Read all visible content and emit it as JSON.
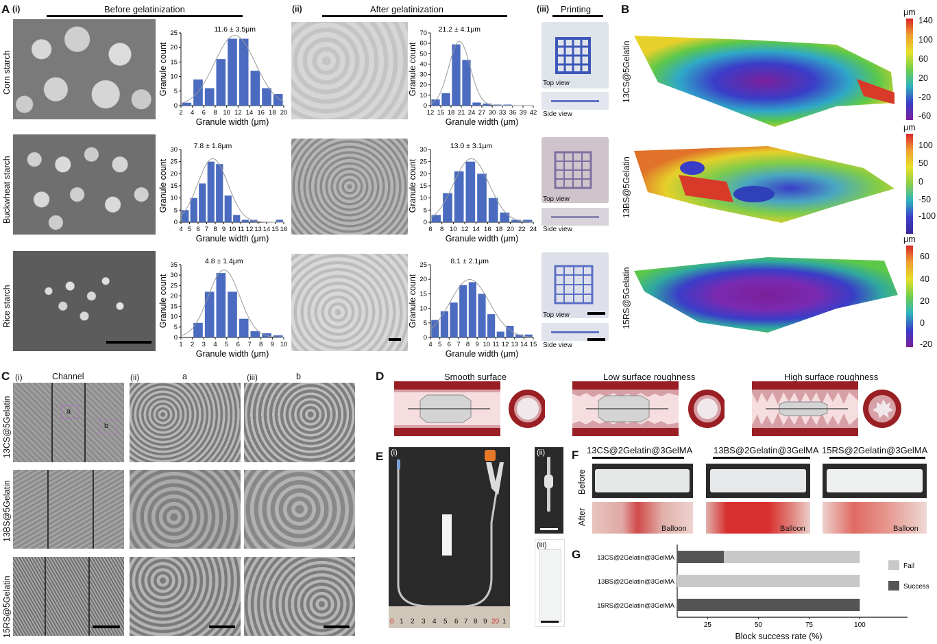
{
  "panels": {
    "A": "A",
    "B": "B",
    "C": "C",
    "D": "D",
    "E": "E",
    "F": "F",
    "G": "G"
  },
  "panelA": {
    "sub_i": "(i)",
    "sub_ii": "(ii)",
    "sub_iii": "(iii)",
    "before_header": "Before gelatinization",
    "after_header": "After gelatinization",
    "printing_header": "Printing",
    "rows": [
      "Corn starch",
      "Buckwheat starch",
      "Rice starch"
    ],
    "top_view": "Top view",
    "side_view": "Side view"
  },
  "panelB": {
    "rows": [
      "13CS@5Gelatin",
      "13BS@5Gelatin",
      "15RS@5Gelatin"
    ],
    "unit": "μm",
    "scales": [
      [
        "140",
        "100",
        "60",
        "20",
        "-20",
        "-60"
      ],
      [
        "100",
        "50",
        "0",
        "-50",
        "-100"
      ],
      [
        "60",
        "40",
        "20",
        "0",
        "-20"
      ]
    ]
  },
  "panelC": {
    "sub_i": "(i)",
    "sub_ii": "(ii)",
    "sub_iii": "(iii)",
    "col_channel": "Channel",
    "col_a": "a",
    "col_b": "b",
    "box_a": "a",
    "box_b": "b",
    "rows": [
      "13CS@5Gelatin",
      "13BS@5Gelatin",
      "15RS@5Gelatin"
    ]
  },
  "panelD": {
    "titles": [
      "Smooth surface",
      "Low surface roughness",
      "High surface roughness"
    ]
  },
  "panelE": {
    "sub_i": "(i)",
    "sub_ii": "(ii)",
    "sub_iii": "(iii)",
    "ruler": [
      "0",
      "1",
      "2",
      "3",
      "4",
      "5",
      "6",
      "7",
      "8",
      "9",
      "20",
      "1"
    ]
  },
  "panelF": {
    "titles": [
      "13CS@2Gelatin@3GelMA",
      "13BS@2Gelatin@3GelMA",
      "15RS@2Gelatin@3GelMA"
    ],
    "before": "Before",
    "after": "After",
    "balloon": "Balloon"
  },
  "chart_data": [
    {
      "type": "bar",
      "panel": "A(i) Corn starch",
      "annotation": "11.6 ± 3.5μm",
      "xlabel": "Granule width (μm)",
      "ylabel": "Granule count",
      "ylim": [
        0,
        25
      ],
      "yticks": [
        "0",
        "5",
        "10",
        "15",
        "20",
        "25"
      ],
      "xticks": [
        "2",
        "4",
        "6",
        "8",
        "10",
        "12",
        "14",
        "16",
        "18",
        "20"
      ],
      "categories": [
        "3",
        "5",
        "7",
        "9",
        "11",
        "13",
        "15",
        "17",
        "19"
      ],
      "values": [
        1,
        9,
        6,
        16,
        23,
        23,
        12,
        6,
        4
      ]
    },
    {
      "type": "bar",
      "panel": "A(ii) Corn starch",
      "annotation": "21.2 ± 4.1μm",
      "xlabel": "Granule width (μm)",
      "ylabel": "Granule count",
      "ylim": [
        0,
        70
      ],
      "yticks": [
        "0",
        "10",
        "20",
        "30",
        "40",
        "50",
        "60",
        "70"
      ],
      "xticks": [
        "12",
        "15",
        "18",
        "21",
        "24",
        "27",
        "30",
        "33",
        "36",
        "39",
        "42"
      ],
      "categories": [
        "13.5",
        "16.5",
        "19.5",
        "22.5",
        "25.5",
        "28.5",
        "31.5",
        "34.5",
        "37.5",
        "40.5"
      ],
      "values": [
        6,
        12,
        59,
        44,
        3,
        2,
        1,
        1,
        0,
        0
      ]
    },
    {
      "type": "bar",
      "panel": "A(i) Buckwheat starch",
      "annotation": "7.8 ± 1.8μm",
      "xlabel": "Granule width (μm)",
      "ylabel": "Granule count",
      "ylim": [
        0,
        30
      ],
      "yticks": [
        "0",
        "5",
        "10",
        "15",
        "20",
        "25",
        "30"
      ],
      "xticks": [
        "4",
        "5",
        "6",
        "7",
        "8",
        "9",
        "10",
        "11",
        "12",
        "13",
        "14",
        "15",
        "16"
      ],
      "categories": [
        "4.5",
        "5.5",
        "6.5",
        "7.5",
        "8.5",
        "9.5",
        "10.5",
        "11.5",
        "12.5",
        "13.5",
        "14.5",
        "15.5"
      ],
      "values": [
        5,
        10,
        16,
        25,
        24,
        11,
        3,
        1,
        1,
        0,
        0,
        1
      ]
    },
    {
      "type": "bar",
      "panel": "A(ii) Buckwheat starch",
      "annotation": "13.0 ± 3.1μm",
      "xlabel": "Granule width (μm)",
      "ylabel": "Granule count",
      "ylim": [
        0,
        30
      ],
      "yticks": [
        "0",
        "5",
        "10",
        "15",
        "20",
        "25",
        "30"
      ],
      "xticks": [
        "6",
        "8",
        "10",
        "12",
        "14",
        "16",
        "18",
        "20",
        "22",
        "24"
      ],
      "categories": [
        "7",
        "9",
        "11",
        "13",
        "15",
        "17",
        "19",
        "21",
        "23"
      ],
      "values": [
        3,
        12,
        21,
        25,
        20,
        10,
        4,
        1,
        1
      ]
    },
    {
      "type": "bar",
      "panel": "A(i) Rice starch",
      "annotation": "4.8 ± 1.4μm",
      "xlabel": "Granule width (μm)",
      "ylabel": "Granule count",
      "ylim": [
        0,
        35
      ],
      "yticks": [
        "0",
        "5",
        "10",
        "15",
        "20",
        "25",
        "30",
        "35"
      ],
      "xticks": [
        "1",
        "2",
        "3",
        "4",
        "5",
        "6",
        "7",
        "8",
        "9",
        "10"
      ],
      "categories": [
        "2.5",
        "3.5",
        "4.5",
        "5.5",
        "6.5",
        "7.5",
        "8.5",
        "9.5"
      ],
      "values": [
        7,
        22,
        31,
        22,
        9,
        3,
        2,
        1
      ]
    },
    {
      "type": "bar",
      "panel": "A(ii) Rice starch",
      "annotation": "8.1 ± 2.1μm",
      "xlabel": "Granule width (μm)",
      "ylabel": "Granule count",
      "ylim": [
        0,
        25
      ],
      "yticks": [
        "0",
        "5",
        "10",
        "15",
        "20",
        "25"
      ],
      "xticks": [
        "4",
        "5",
        "6",
        "7",
        "8",
        "9",
        "10",
        "11",
        "12",
        "13",
        "14",
        "15"
      ],
      "categories": [
        "4.5",
        "5.5",
        "6.5",
        "7.5",
        "8.5",
        "9.5",
        "10.5",
        "11.5",
        "12.5",
        "13.5",
        "14.5"
      ],
      "values": [
        6,
        9,
        12,
        18,
        19,
        15,
        8,
        2,
        4,
        1,
        1
      ]
    },
    {
      "type": "bar",
      "orientation": "horizontal",
      "stacked": true,
      "panel": "G",
      "xlabel": "Block success rate (%)",
      "xticks": [
        "25",
        "50",
        "75",
        "100"
      ],
      "categories": [
        "13CS@2Gelatin@3GelMA",
        "13BS@2Gelatin@3GelMA",
        "15RS@2Gelatin@3GelMA"
      ],
      "series": [
        {
          "name": "Success",
          "color": "#555555",
          "values": [
            33,
            0,
            100
          ]
        },
        {
          "name": "Fail",
          "color": "#c8c8c8",
          "values": [
            67,
            100,
            0
          ]
        }
      ],
      "legend": [
        "Fail",
        "Success"
      ]
    }
  ]
}
